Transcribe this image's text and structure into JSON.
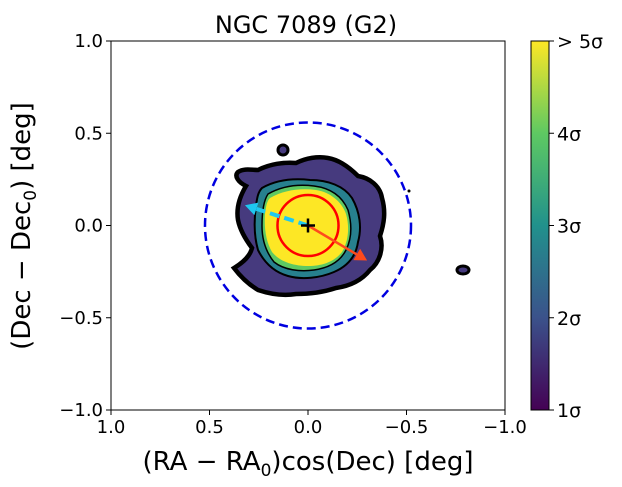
{
  "chart_data": {
    "type": "heatmap",
    "title": "NGC 7089 (G2)",
    "xlabel": "(RA − RA",
    "xlabel_sub": "0",
    "xlabel_tail": ")cos(Dec) [deg]",
    "ylabel": "(Dec − Dec",
    "ylabel_sub": "0",
    "ylabel_tail": ") [deg]",
    "xlim": [
      1.0,
      -1.0
    ],
    "ylim": [
      -1.0,
      1.0
    ],
    "xticks": [
      1.0,
      0.5,
      0.0,
      -0.5,
      -1.0
    ],
    "xtick_labels": [
      "1.0",
      "0.5",
      "0.0",
      "−0.5",
      "−1.0"
    ],
    "yticks": [
      1.0,
      0.5,
      0.0,
      -0.5,
      -1.0
    ],
    "ytick_labels": [
      "1.0",
      "0.5",
      "0.0",
      "−0.5",
      "−1.0"
    ],
    "colorbar": {
      "range": [
        1,
        5
      ],
      "ticks": [
        1,
        2,
        3,
        4,
        5
      ],
      "tick_labels": [
        "1σ",
        "2σ",
        "3σ",
        "4σ",
        "> 5σ"
      ],
      "colormap": [
        "#440154",
        "#3b528b",
        "#21918c",
        "#5ec962",
        "#fde725"
      ]
    },
    "tidal_radius_deg": 0.54,
    "half_light_radius_deg": 0.16,
    "center_marker": [
      0.0,
      0.0
    ],
    "proper_motion_arrow": {
      "from": [
        0.0,
        0.0
      ],
      "to": [
        0.32,
        0.11
      ],
      "color": "#1ec8f0",
      "style": "dashed"
    },
    "galactic_center_arrow": {
      "from": [
        0.0,
        0.0
      ],
      "to": [
        -0.3,
        -0.19
      ],
      "color": "#ff4a1c",
      "style": "solid"
    },
    "colors": {
      "tidal_circle": "#0000e0",
      "inner_circle": "#ff0000",
      "contour_line": "#000000"
    }
  }
}
